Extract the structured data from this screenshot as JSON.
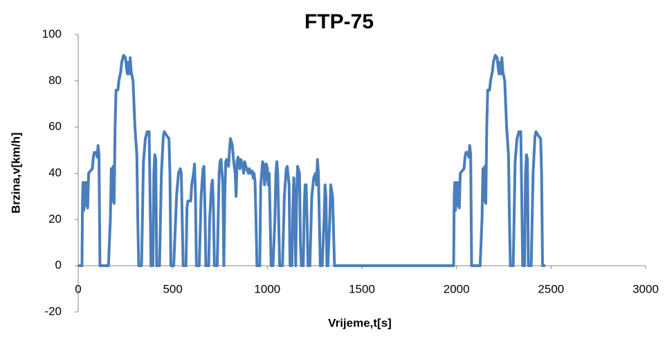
{
  "chart_data": {
    "type": "line",
    "title": "FTP-75",
    "x_label": "Vrijeme,t[s]",
    "y_label": "Brzina,v[km/h]",
    "xlim": [
      0,
      3000
    ],
    "xticks": [
      0,
      500,
      1000,
      1500,
      2000,
      2500,
      3000
    ],
    "ylim": [
      -20,
      100
    ],
    "yticks": [
      -20,
      0,
      20,
      40,
      60,
      80,
      100
    ],
    "grid": false,
    "series": [
      {
        "name": "Brzina",
        "color": "#4a7ebb",
        "x": [
          0,
          20,
          23,
          26,
          30,
          35,
          40,
          45,
          50,
          55,
          65,
          75,
          80,
          85,
          95,
          100,
          105,
          110,
          115,
          160,
          170,
          175,
          180,
          185,
          190,
          195,
          200,
          210,
          215,
          225,
          230,
          240,
          250,
          255,
          260,
          265,
          270,
          275,
          280,
          290,
          300,
          310,
          315,
          320,
          335,
          345,
          355,
          365,
          375,
          380,
          385,
          395,
          400,
          405,
          410,
          415,
          430,
          440,
          450,
          455,
          470,
          480,
          485,
          490,
          505,
          520,
          530,
          540,
          545,
          550,
          555,
          570,
          575,
          580,
          595,
          600,
          610,
          615,
          620,
          625,
          640,
          650,
          660,
          665,
          670,
          675,
          690,
          695,
          705,
          710,
          715,
          720,
          735,
          745,
          750,
          755,
          765,
          770,
          775,
          780,
          785,
          795,
          800,
          805,
          815,
          820,
          825,
          830,
          835,
          840,
          845,
          855,
          860,
          870,
          875,
          880,
          890,
          900,
          905,
          910,
          920,
          925,
          930,
          935,
          940,
          945,
          960,
          965,
          975,
          980,
          985,
          990,
          995,
          1000,
          1005,
          1010,
          1015,
          1020,
          1030,
          1040,
          1045,
          1050,
          1055,
          1060,
          1065,
          1080,
          1090,
          1100,
          1105,
          1115,
          1120,
          1130,
          1135,
          1140,
          1145,
          1150,
          1155,
          1160,
          1170,
          1175,
          1180,
          1190,
          1195,
          1200,
          1205,
          1210,
          1215,
          1225,
          1235,
          1245,
          1255,
          1260,
          1265,
          1270,
          1275,
          1280,
          1290,
          1300,
          1305,
          1310,
          1315,
          1320,
          1330,
          1335,
          1345,
          1350,
          1355,
          1965,
          1985,
          1988,
          1991,
          1995,
          2000,
          2005,
          2010,
          2015,
          2020,
          2030,
          2040,
          2045,
          2050,
          2060,
          2065,
          2070,
          2075,
          2080,
          2125,
          2135,
          2140,
          2145,
          2150,
          2155,
          2160,
          2165,
          2175,
          2180,
          2190,
          2195,
          2205,
          2215,
          2220,
          2225,
          2230,
          2235,
          2240,
          2245,
          2255,
          2265,
          2275,
          2280,
          2285,
          2300,
          2310,
          2320,
          2330,
          2340,
          2345,
          2350,
          2360,
          2365,
          2370,
          2375,
          2380,
          2395,
          2405,
          2415,
          2420,
          2435,
          2445,
          2450,
          2455,
          2470
        ],
        "values": [
          0,
          0,
          30,
          36,
          24,
          36,
          26,
          36,
          25,
          40,
          41,
          42,
          47,
          49,
          49,
          47,
          52,
          48,
          0,
          0,
          20,
          42,
          28,
          43,
          27,
          60,
          76,
          76,
          80,
          84,
          88,
          91,
          90,
          86,
          83,
          88,
          83,
          90,
          84,
          80,
          60,
          48,
          20,
          0,
          0,
          45,
          55,
          58,
          58,
          30,
          0,
          0,
          40,
          48,
          46,
          0,
          0,
          40,
          56,
          58,
          56,
          55,
          40,
          0,
          0,
          30,
          40,
          42,
          40,
          20,
          0,
          0,
          25,
          28,
          28,
          35,
          40,
          44,
          30,
          0,
          0,
          30,
          42,
          43,
          25,
          0,
          0,
          20,
          35,
          37,
          25,
          0,
          0,
          40,
          45,
          46,
          35,
          0,
          30,
          45,
          46,
          43,
          50,
          55,
          52,
          47,
          43,
          40,
          30,
          45,
          47,
          42,
          46,
          43,
          40,
          45,
          42,
          40,
          42,
          40,
          41,
          38,
          40,
          36,
          20,
          0,
          0,
          35,
          45,
          44,
          35,
          38,
          44,
          42,
          35,
          40,
          20,
          0,
          0,
          20,
          40,
          45,
          40,
          20,
          0,
          0,
          30,
          42,
          43,
          35,
          0,
          0,
          25,
          38,
          25,
          0,
          30,
          43,
          40,
          10,
          0,
          0,
          25,
          35,
          35,
          20,
          0,
          0,
          30,
          38,
          40,
          35,
          46,
          40,
          20,
          0,
          0,
          20,
          35,
          30,
          0,
          0,
          20,
          35,
          30,
          15,
          0,
          0,
          0,
          30,
          36,
          24,
          36,
          26,
          36,
          25,
          40,
          41,
          42,
          47,
          49,
          49,
          47,
          52,
          48,
          0,
          0,
          20,
          42,
          28,
          43,
          27,
          60,
          76,
          76,
          80,
          84,
          88,
          91,
          90,
          86,
          83,
          88,
          83,
          90,
          84,
          80,
          60,
          48,
          20,
          0,
          0,
          45,
          55,
          58,
          58,
          30,
          0,
          0,
          40,
          48,
          46,
          0,
          0,
          40,
          56,
          58,
          56,
          55,
          40,
          0,
          0
        ]
      }
    ]
  }
}
